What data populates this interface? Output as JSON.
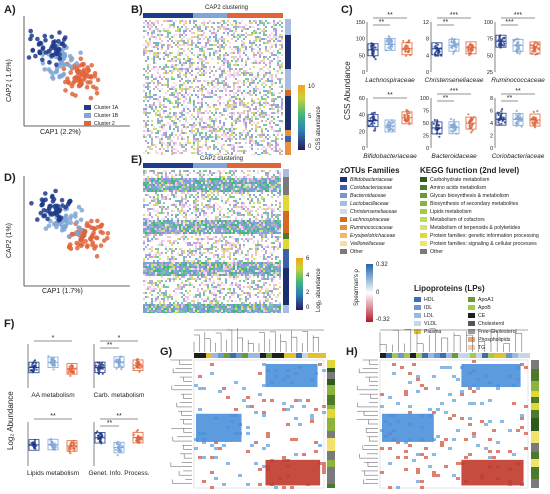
{
  "panels": {
    "A": {
      "label": "A)",
      "xlabel": "CAP1 (2.2%)",
      "ylabel": "CAP2 ( 1.6%)",
      "legend": [
        {
          "name": "Cluster 1A",
          "color": "#1f3b8a"
        },
        {
          "name": "Cluster 1B",
          "color": "#7fa6d6"
        },
        {
          "name": "Cluster 2",
          "color": "#e0643a"
        }
      ]
    },
    "B": {
      "label": "B)",
      "title": "CAP2 clustering",
      "colorbar_label": "CSS abundance",
      "ticks": [
        "10",
        "5",
        "0"
      ]
    },
    "C": {
      "label": "C)",
      "ylabel": "CSS Abundance",
      "subplots": [
        {
          "name": "Lachnospiraceae",
          "ticks": [
            "150",
            "100",
            "50",
            "0"
          ],
          "sig": [
            "**",
            "**"
          ]
        },
        {
          "name": "Christenseneliaceae",
          "ticks": [
            "12",
            "8",
            "4",
            "0"
          ],
          "sig": [
            "***",
            "**"
          ]
        },
        {
          "name": "Ruminococcaceae",
          "ticks": [
            "100",
            "75",
            "50",
            "25"
          ],
          "sig": [
            "***",
            "***"
          ]
        },
        {
          "name": "Bifidobacteriaceae",
          "ticks": [
            "60",
            "40",
            "20",
            "0"
          ],
          "sig": [
            "**"
          ]
        },
        {
          "name": "Bacteroidaceae",
          "ticks": [
            "100",
            "75",
            "50",
            "25",
            "0"
          ],
          "sig": [
            "***",
            "**"
          ]
        },
        {
          "name": "Coriobacteriaceae",
          "ticks": [
            "8",
            "6",
            "4",
            "2",
            "0"
          ],
          "sig": [
            "**",
            "**"
          ]
        }
      ]
    },
    "D": {
      "label": "D)",
      "xlabel": "CAP1 (1.7%)",
      "ylabel": "CAP2 (1%)"
    },
    "E": {
      "label": "E)",
      "title": "CAP2 clustering",
      "colorbar_label": "Log₂ abundance",
      "ticks": [
        "6",
        "4",
        "2",
        "0"
      ]
    },
    "legend": {
      "zotu_title": "zOTUs Families",
      "zotu": [
        {
          "name": "Bifidobacteriaceae",
          "color": "#1b2f6e"
        },
        {
          "name": "Coriobacteriaceae",
          "color": "#3b5fa8"
        },
        {
          "name": "Bacteroidaceae",
          "color": "#7c95c8"
        },
        {
          "name": "Lactobacillaceae",
          "color": "#a9bde0"
        },
        {
          "name": "Christenseneliaceae",
          "color": "#d0d9ee"
        },
        {
          "name": "Lachnospiraceae",
          "color": "#d46a21"
        },
        {
          "name": "Ruminococcaceae",
          "color": "#e8913e"
        },
        {
          "name": "Erysipelotrichaceae",
          "color": "#f2b96a"
        },
        {
          "name": "Veillonellaceae",
          "color": "#f7dba9"
        },
        {
          "name": "Other",
          "color": "#7a7a7a"
        }
      ],
      "kegg_title": "KEGG function (2nd level)",
      "kegg": [
        {
          "name": "Carbohydrate metabolism",
          "color": "#2e5a1c"
        },
        {
          "name": "Amino acids metabolism",
          "color": "#4c7a28"
        },
        {
          "name": "Glycan biosynthesis & metabolism",
          "color": "#6b9a34"
        },
        {
          "name": "Biosynthesis of secondary metabolites",
          "color": "#8ab43e"
        },
        {
          "name": "Lipids metabolism",
          "color": "#a5c94a"
        },
        {
          "name": "Metabolism of cofactors",
          "color": "#c1d95c"
        },
        {
          "name": "Metabolism of terpenoids & polyketides",
          "color": "#d4e27a"
        },
        {
          "name": "Protein families: genetic information processing",
          "color": "#e2d834"
        },
        {
          "name": "Protein families: signaling & cellular processes",
          "color": "#efe36b"
        },
        {
          "name": "Other",
          "color": "#7a7a7a"
        }
      ],
      "lp_title": "Lipoproteins (LPs)",
      "lp_left": [
        {
          "name": "HDL",
          "color": "#3b6fb0"
        },
        {
          "name": "IDL",
          "color": "#6d97cc"
        },
        {
          "name": "LDL",
          "color": "#9db8df"
        },
        {
          "name": "VLDL",
          "color": "#c8d6ec"
        },
        {
          "name": "Plasma",
          "color": "#e3c12b"
        }
      ],
      "lp_right": [
        {
          "name": "ApoA1",
          "color": "#6b9a34"
        },
        {
          "name": "ApoB",
          "color": "#a5c94a"
        },
        {
          "name": "CE",
          "color": "#1f1f1f"
        },
        {
          "name": "Cholesterol",
          "color": "#555555"
        },
        {
          "name": "Free-Cholesterol",
          "color": "#9a9a9a"
        },
        {
          "name": "Phospholipids",
          "color": "#e8a36e"
        },
        {
          "name": "TG",
          "color": "#f4cdb0"
        }
      ],
      "spearman_label": "Spearman's ρ",
      "spearman_ticks": [
        "0.32",
        "0",
        "-0.32"
      ]
    },
    "F": {
      "label": "F)",
      "ylabel": "Log₂ Abundance",
      "subplots": [
        {
          "name": "AA metabolism",
          "sig": [
            "*"
          ]
        },
        {
          "name": "Carb. metabolism",
          "sig": [
            "*",
            "**"
          ]
        },
        {
          "name": "Lipids metabolism",
          "sig": [
            "**"
          ]
        },
        {
          "name": "Genet. Info. Process.",
          "sig": [
            "**",
            "**"
          ]
        }
      ]
    },
    "G": {
      "label": "G)"
    },
    "H": {
      "label": "H)"
    }
  }
}
